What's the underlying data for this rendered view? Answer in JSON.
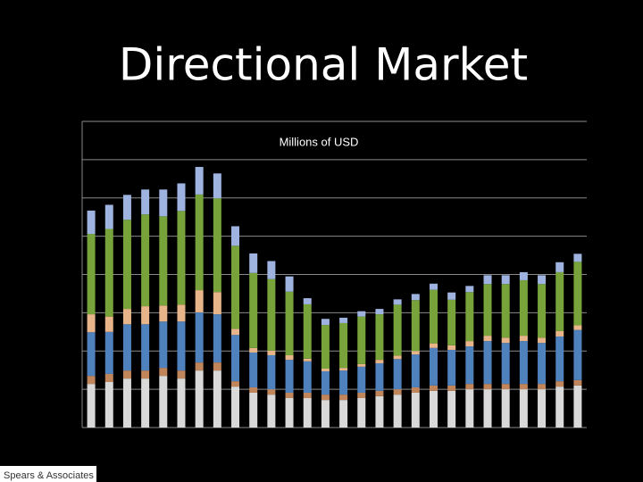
{
  "title": "Directional Market",
  "logo": "Spears & Associates",
  "chart_data": {
    "type": "stacked-bar",
    "subtitle": "Millions of USD",
    "categories": [
      null,
      null,
      null,
      null,
      null,
      null,
      null,
      null,
      null,
      null,
      null,
      null,
      null,
      null,
      null,
      null,
      null,
      null,
      null,
      null,
      null,
      null,
      null,
      null,
      null,
      null,
      null,
      null
    ],
    "ylim": [
      0,
      8
    ],
    "grid": [
      0,
      1,
      2,
      3,
      4,
      5,
      6,
      7,
      8
    ],
    "series": [
      {
        "color": "#d9d9d9",
        "values": [
          1.14,
          1.19,
          1.28,
          1.28,
          1.35,
          1.28,
          1.49,
          1.49,
          1.07,
          0.91,
          0.86,
          0.77,
          0.77,
          0.72,
          0.72,
          0.77,
          0.82,
          0.86,
          0.91,
          0.96,
          0.96,
          1.0,
          1.0,
          1.0,
          1.0,
          1.0,
          1.07,
          1.1
        ]
      },
      {
        "color": "#c0855a",
        "values": [
          0.21,
          0.21,
          0.21,
          0.21,
          0.21,
          0.21,
          0.21,
          0.21,
          0.14,
          0.14,
          0.14,
          0.14,
          0.14,
          0.14,
          0.14,
          0.14,
          0.14,
          0.14,
          0.14,
          0.14,
          0.14,
          0.14,
          0.14,
          0.14,
          0.14,
          0.14,
          0.14,
          0.14
        ]
      },
      {
        "color": "#4f81bd",
        "values": [
          1.14,
          1.1,
          1.21,
          1.21,
          1.21,
          1.28,
          1.31,
          1.26,
          1.21,
          0.91,
          0.89,
          0.86,
          0.82,
          0.61,
          0.63,
          0.68,
          0.72,
          0.79,
          0.86,
          0.98,
          0.93,
          0.98,
          1.12,
          1.07,
          1.12,
          1.07,
          1.17,
          1.31
        ]
      },
      {
        "color": "#e8b58a",
        "values": [
          0.47,
          0.4,
          0.4,
          0.47,
          0.42,
          0.44,
          0.58,
          0.58,
          0.16,
          0.12,
          0.12,
          0.12,
          0.07,
          0.07,
          0.07,
          0.07,
          0.09,
          0.09,
          0.09,
          0.12,
          0.12,
          0.14,
          0.14,
          0.14,
          0.14,
          0.14,
          0.14,
          0.12
        ]
      },
      {
        "color": "#77a33a",
        "values": [
          2.1,
          2.29,
          2.33,
          2.4,
          2.33,
          2.45,
          2.5,
          2.45,
          2.17,
          1.96,
          1.87,
          1.66,
          1.42,
          1.14,
          1.17,
          1.24,
          1.19,
          1.33,
          1.33,
          1.4,
          1.19,
          1.28,
          1.35,
          1.4,
          1.45,
          1.4,
          1.54,
          1.66
        ]
      },
      {
        "color": "#9fb3e0",
        "values": [
          0.61,
          0.63,
          0.65,
          0.65,
          0.7,
          0.72,
          0.72,
          0.65,
          0.51,
          0.51,
          0.47,
          0.4,
          0.16,
          0.16,
          0.14,
          0.14,
          0.14,
          0.14,
          0.16,
          0.16,
          0.19,
          0.16,
          0.23,
          0.23,
          0.21,
          0.23,
          0.26,
          0.21
        ]
      }
    ]
  }
}
